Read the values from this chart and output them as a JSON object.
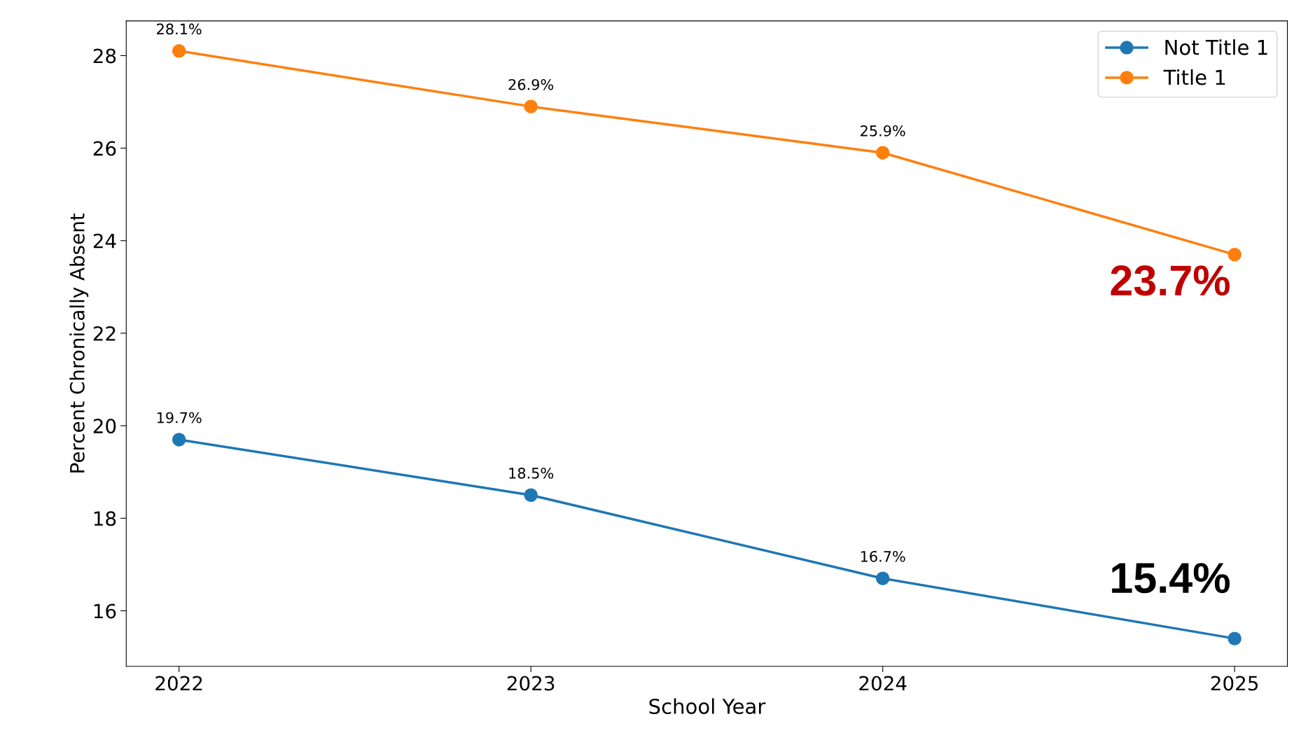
{
  "chart_data": {
    "type": "line",
    "xlabel": "School Year",
    "ylabel": "Percent Chronically Absent",
    "x": [
      2022,
      2023,
      2024,
      2025
    ],
    "series": [
      {
        "name": "Not Title 1",
        "color": "#1f77b4",
        "values": [
          19.7,
          18.5,
          16.7,
          15.4
        ],
        "value_labels": [
          "19.7%",
          "18.5%",
          "16.7%",
          null
        ]
      },
      {
        "name": "Title 1",
        "color": "#ff7f0e",
        "values": [
          28.1,
          26.9,
          25.9,
          23.7
        ],
        "value_labels": [
          "28.1%",
          "26.9%",
          "25.9%",
          null
        ]
      }
    ],
    "annotations": [
      {
        "text": "15.4%",
        "x": 2025,
        "y": 15.4
      },
      {
        "text": "23.7%",
        "x": 2025,
        "y": 23.7
      }
    ],
    "xlim": [
      2021.85,
      2025.15
    ],
    "xticks": [
      2022,
      2023,
      2024,
      2025
    ],
    "ylim": [
      14.8,
      28.75
    ],
    "yticks": [
      16,
      18,
      20,
      22,
      24,
      26,
      28
    ],
    "marker": "circle",
    "line_style": "solid",
    "legend": "top right",
    "grid": false
  }
}
